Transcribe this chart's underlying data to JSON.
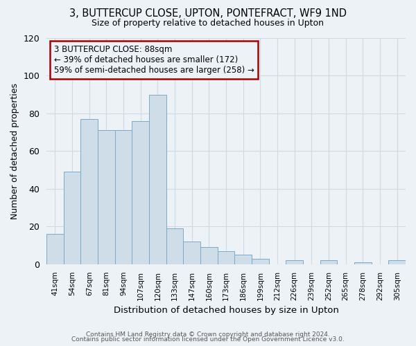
{
  "title": "3, BUTTERCUP CLOSE, UPTON, PONTEFRACT, WF9 1ND",
  "subtitle": "Size of property relative to detached houses in Upton",
  "xlabel": "Distribution of detached houses by size in Upton",
  "ylabel": "Number of detached properties",
  "bar_labels": [
    "41sqm",
    "54sqm",
    "67sqm",
    "81sqm",
    "94sqm",
    "107sqm",
    "120sqm",
    "133sqm",
    "147sqm",
    "160sqm",
    "173sqm",
    "186sqm",
    "199sqm",
    "212sqm",
    "226sqm",
    "239sqm",
    "252sqm",
    "265sqm",
    "278sqm",
    "292sqm",
    "305sqm"
  ],
  "bar_heights": [
    16,
    49,
    77,
    71,
    71,
    76,
    90,
    19,
    12,
    9,
    7,
    5,
    3,
    0,
    2,
    0,
    2,
    0,
    1,
    0,
    2
  ],
  "bar_color": "#cfdde9",
  "bar_edge_color": "#7aaac8",
  "annotation_text": "3 BUTTERCUP CLOSE: 88sqm\n← 39% of detached houses are smaller (172)\n59% of semi-detached houses are larger (258) →",
  "annotation_box_edge": "#aa0000",
  "ylim": [
    0,
    120
  ],
  "yticks": [
    0,
    20,
    40,
    60,
    80,
    100,
    120
  ],
  "background_color": "#edf2f7",
  "grid_color": "#d0dae3",
  "footer_line1": "Contains HM Land Registry data © Crown copyright and database right 2024.",
  "footer_line2": "Contains public sector information licensed under the Open Government Licence v3.0."
}
